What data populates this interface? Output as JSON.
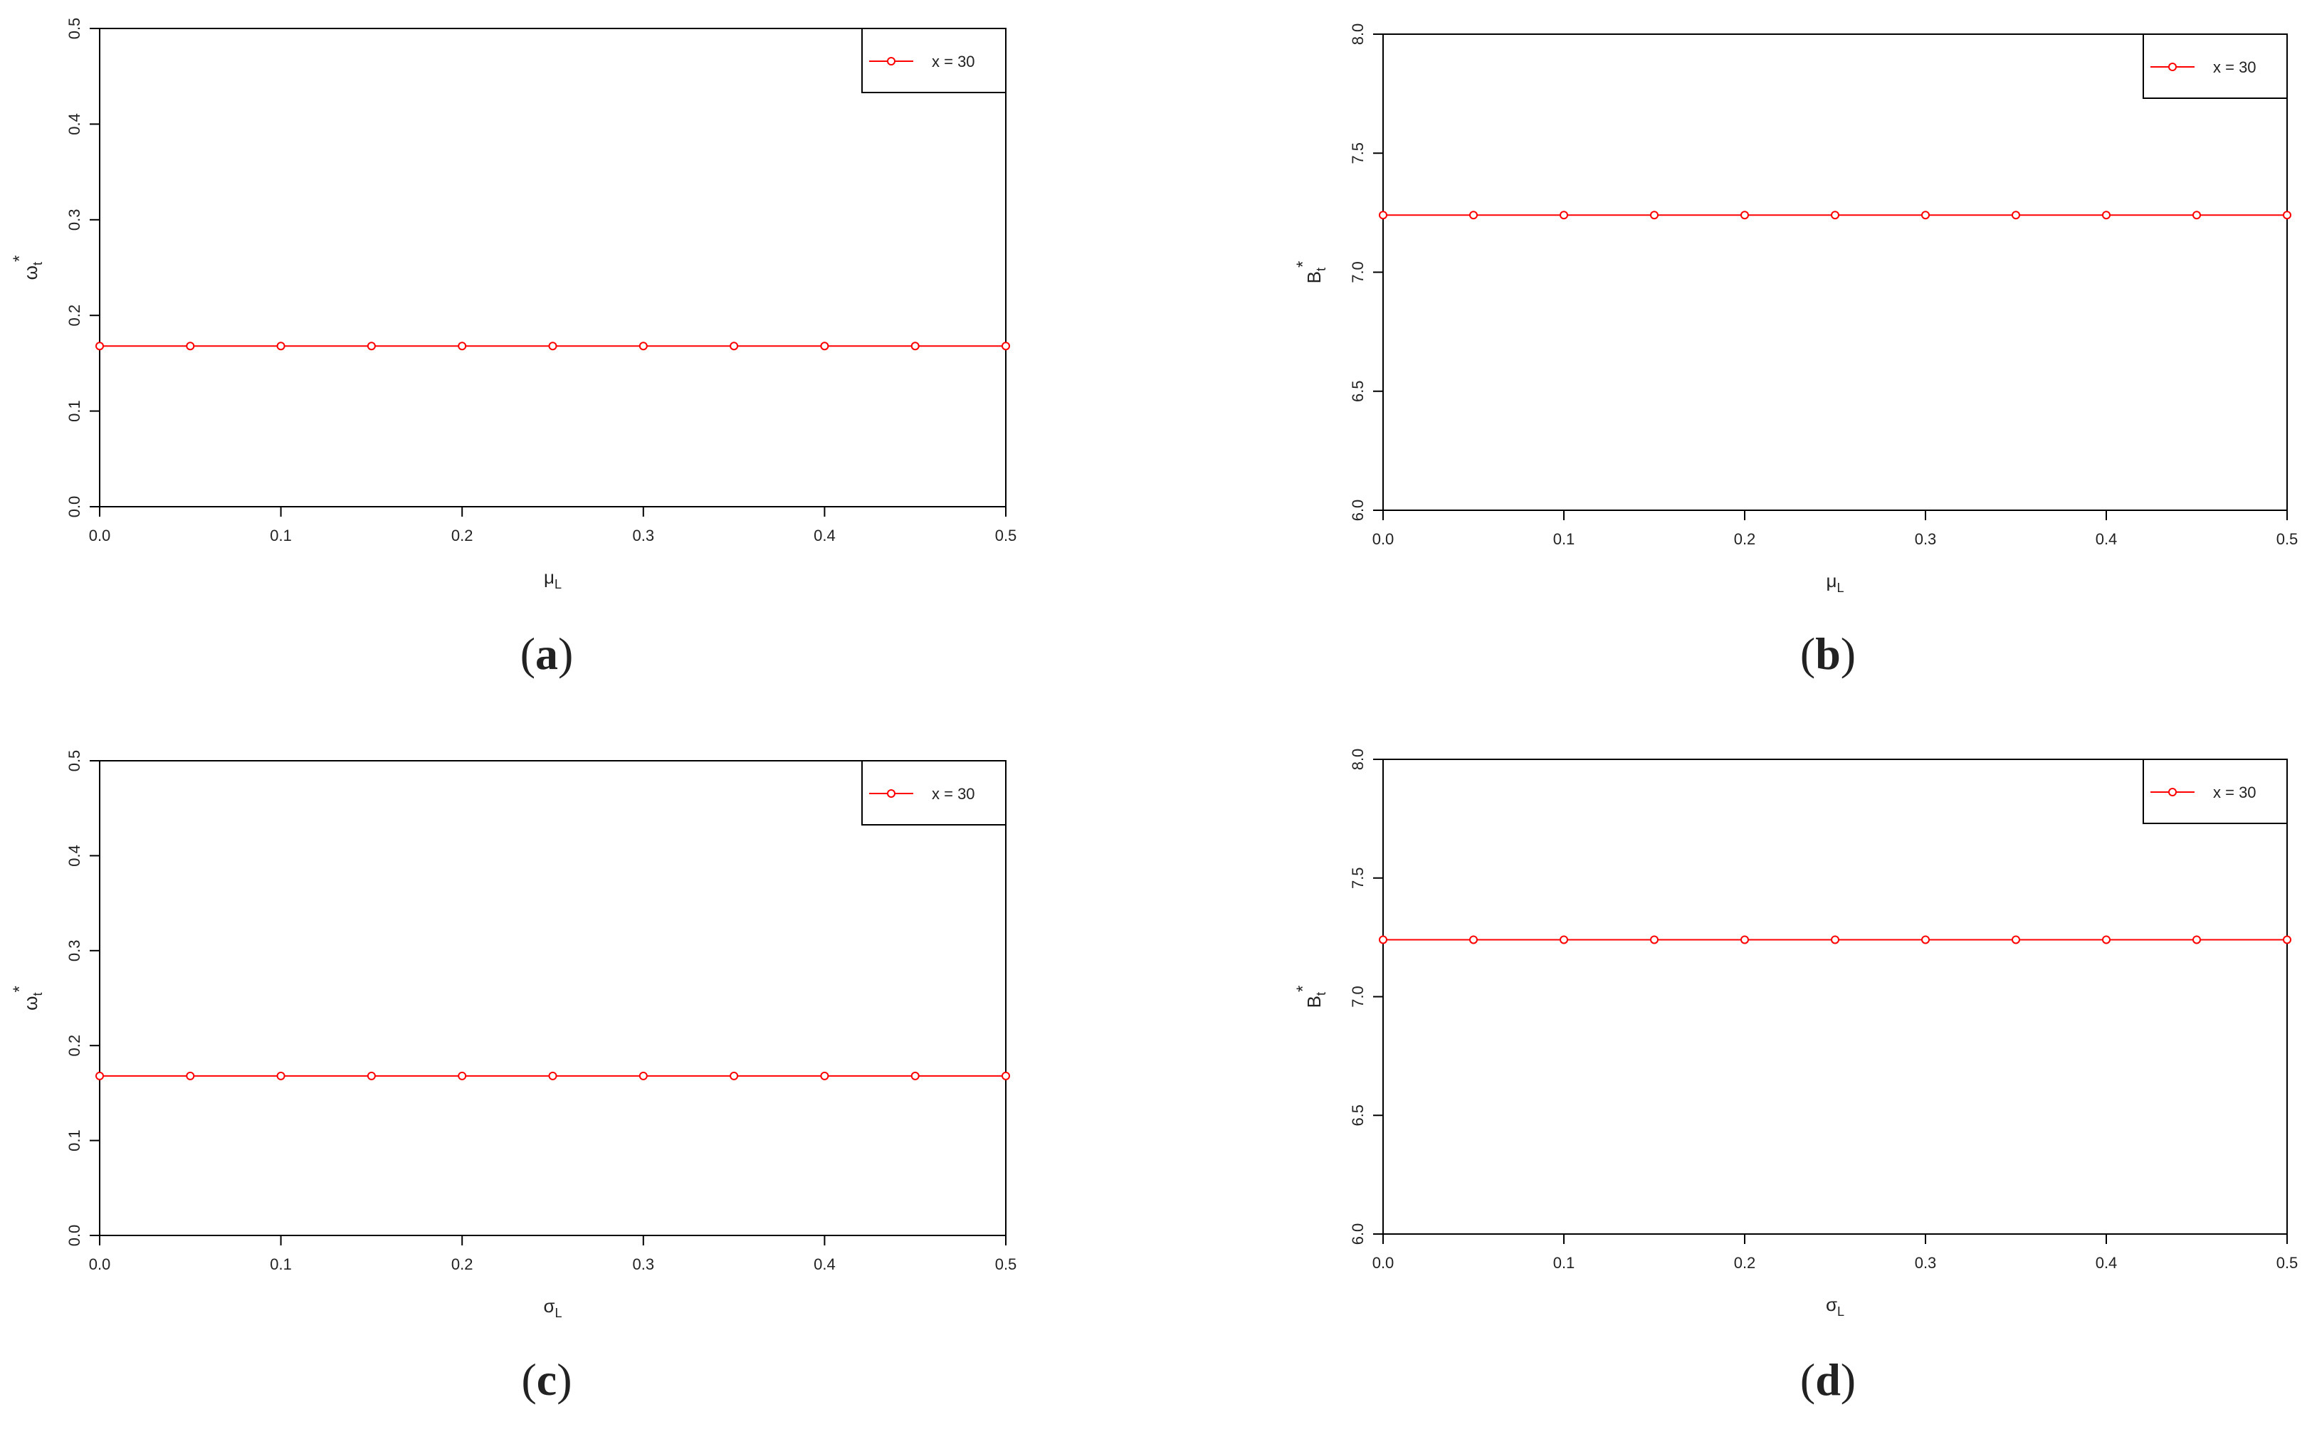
{
  "colors": {
    "series": "#ff0000",
    "axis": "#000000",
    "background": "#ffffff"
  },
  "chart_data": [
    {
      "panel": "(a)",
      "caption_letter": "a",
      "type": "line",
      "xlabel_main": "μ",
      "xlabel_sub": "L",
      "ylabel_main": "ω",
      "ylabel_sub": "t",
      "ylabel_sup": "*",
      "xlim": [
        0,
        0.5
      ],
      "ylim": [
        0,
        0.5
      ],
      "xticks": [
        0.0,
        0.1,
        0.2,
        0.3,
        0.4,
        0.5
      ],
      "xtick_labels": [
        "0.0",
        "0.1",
        "0.2",
        "0.3",
        "0.4",
        "0.5"
      ],
      "yticks": [
        0.0,
        0.1,
        0.2,
        0.3,
        0.4,
        0.5
      ],
      "ytick_labels": [
        "0.0",
        "0.1",
        "0.2",
        "0.3",
        "0.4",
        "0.5"
      ],
      "legend_position": "top-right",
      "series": [
        {
          "name": "x = 30",
          "color": "#ff0000",
          "x": [
            0.0,
            0.05,
            0.1,
            0.15,
            0.2,
            0.25,
            0.3,
            0.35,
            0.4,
            0.45,
            0.5
          ],
          "y": [
            0.168,
            0.168,
            0.168,
            0.168,
            0.168,
            0.168,
            0.168,
            0.168,
            0.168,
            0.168,
            0.168
          ]
        }
      ]
    },
    {
      "panel": "(b)",
      "caption_letter": "b",
      "type": "line",
      "xlabel_main": "μ",
      "xlabel_sub": "L",
      "ylabel_main": "B",
      "ylabel_sub": "t",
      "ylabel_sup": "*",
      "xlim": [
        0,
        0.5
      ],
      "ylim": [
        6.0,
        8.0
      ],
      "xticks": [
        0.0,
        0.1,
        0.2,
        0.3,
        0.4,
        0.5
      ],
      "xtick_labels": [
        "0.0",
        "0.1",
        "0.2",
        "0.3",
        "0.4",
        "0.5"
      ],
      "yticks": [
        6.0,
        6.5,
        7.0,
        7.5,
        8.0
      ],
      "ytick_labels": [
        "6.0",
        "6.5",
        "7.0",
        "7.5",
        "8.0"
      ],
      "legend_position": "top-right",
      "series": [
        {
          "name": "x = 30",
          "color": "#ff0000",
          "x": [
            0.0,
            0.05,
            0.1,
            0.15,
            0.2,
            0.25,
            0.3,
            0.35,
            0.4,
            0.45,
            0.5
          ],
          "y": [
            7.24,
            7.24,
            7.24,
            7.24,
            7.24,
            7.24,
            7.24,
            7.24,
            7.24,
            7.24,
            7.24
          ]
        }
      ]
    },
    {
      "panel": "(c)",
      "caption_letter": "c",
      "type": "line",
      "xlabel_main": "σ",
      "xlabel_sub": "L",
      "ylabel_main": "ω",
      "ylabel_sub": "t",
      "ylabel_sup": "*",
      "xlim": [
        0,
        0.5
      ],
      "ylim": [
        0,
        0.5
      ],
      "xticks": [
        0.0,
        0.1,
        0.2,
        0.3,
        0.4,
        0.5
      ],
      "xtick_labels": [
        "0.0",
        "0.1",
        "0.2",
        "0.3",
        "0.4",
        "0.5"
      ],
      "yticks": [
        0.0,
        0.1,
        0.2,
        0.3,
        0.4,
        0.5
      ],
      "ytick_labels": [
        "0.0",
        "0.1",
        "0.2",
        "0.3",
        "0.4",
        "0.5"
      ],
      "legend_position": "top-right",
      "series": [
        {
          "name": "x = 30",
          "color": "#ff0000",
          "x": [
            0.0,
            0.05,
            0.1,
            0.15,
            0.2,
            0.25,
            0.3,
            0.35,
            0.4,
            0.45,
            0.5
          ],
          "y": [
            0.168,
            0.168,
            0.168,
            0.168,
            0.168,
            0.168,
            0.168,
            0.168,
            0.168,
            0.168,
            0.168
          ]
        }
      ]
    },
    {
      "panel": "(d)",
      "caption_letter": "d",
      "type": "line",
      "xlabel_main": "σ",
      "xlabel_sub": "L",
      "ylabel_main": "B",
      "ylabel_sub": "t",
      "ylabel_sup": "*",
      "xlim": [
        0,
        0.5
      ],
      "ylim": [
        6.0,
        8.0
      ],
      "xticks": [
        0.0,
        0.1,
        0.2,
        0.3,
        0.4,
        0.5
      ],
      "xtick_labels": [
        "0.0",
        "0.1",
        "0.2",
        "0.3",
        "0.4",
        "0.5"
      ],
      "yticks": [
        6.0,
        6.5,
        7.0,
        7.5,
        8.0
      ],
      "ytick_labels": [
        "6.0",
        "6.5",
        "7.0",
        "7.5",
        "8.0"
      ],
      "legend_position": "top-right",
      "series": [
        {
          "name": "x = 30",
          "color": "#ff0000",
          "x": [
            0.0,
            0.05,
            0.1,
            0.15,
            0.2,
            0.25,
            0.3,
            0.35,
            0.4,
            0.45,
            0.5
          ],
          "y": [
            7.24,
            7.24,
            7.24,
            7.24,
            7.24,
            7.24,
            7.24,
            7.24,
            7.24,
            7.24,
            7.24
          ]
        }
      ]
    }
  ]
}
